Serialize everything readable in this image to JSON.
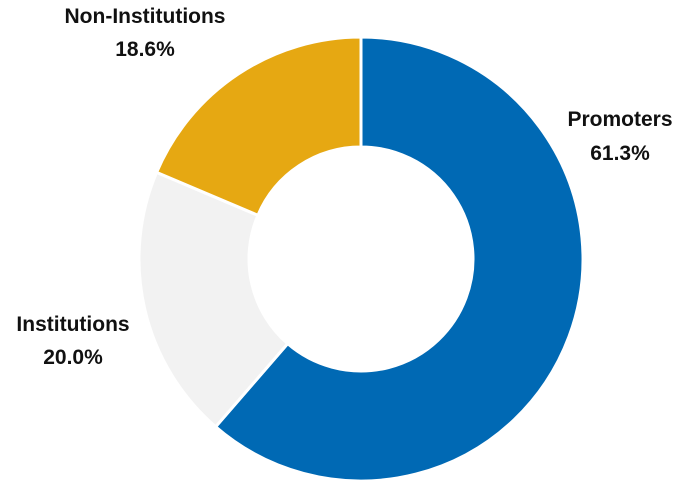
{
  "chart_data": {
    "type": "pie",
    "donut": true,
    "title": "",
    "categories": [
      "Promoters",
      "Institutions",
      "Non-Institutions"
    ],
    "values": [
      61.3,
      20.0,
      18.6
    ],
    "value_labels": [
      "61.3%",
      "20.0%",
      "18.6%"
    ],
    "colors": [
      "#0069B4",
      "#F2F2F2",
      "#E6A812"
    ],
    "slice_border_color": "#FFFFFF",
    "legend": "none"
  }
}
